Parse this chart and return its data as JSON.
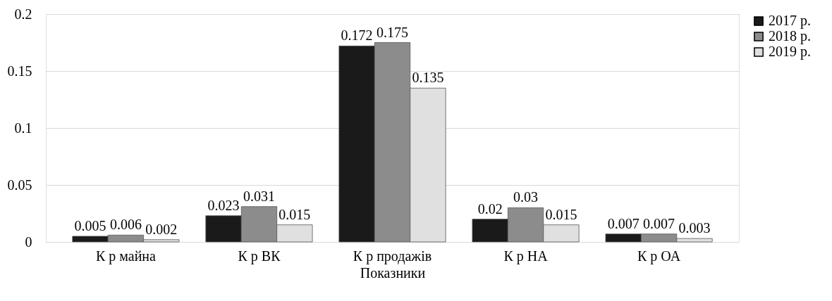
{
  "chart_data": {
    "type": "bar",
    "xlabel": "Показники",
    "categories": [
      "К р майна",
      "К р ВК",
      "К р продажів",
      "К р НА",
      "К р ОА"
    ],
    "series": [
      {
        "name": "2017 р.",
        "color": "#1a1a1a",
        "values": [
          0.005,
          0.023,
          0.172,
          0.02,
          0.007
        ]
      },
      {
        "name": "2018 р.",
        "color": "#8c8c8c",
        "values": [
          0.006,
          0.031,
          0.175,
          0.03,
          0.007
        ]
      },
      {
        "name": "2019 р.",
        "color": "#e0e0e0",
        "values": [
          0.002,
          0.015,
          0.135,
          0.015,
          0.003
        ]
      }
    ],
    "ylim": [
      0,
      0.2
    ],
    "yticks": [
      0,
      0.05,
      0.1,
      0.15,
      0.2
    ],
    "grid": "y",
    "legend": "right",
    "data_labels": true
  }
}
